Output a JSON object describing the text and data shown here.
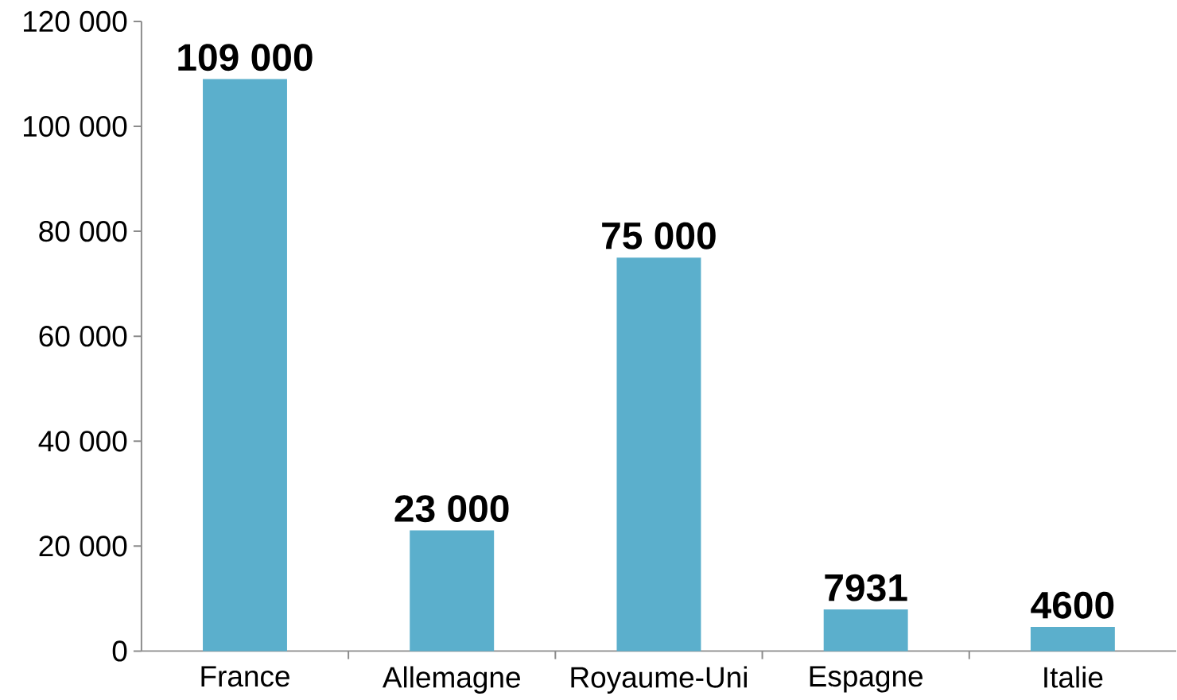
{
  "chart_data": {
    "type": "bar",
    "categories": [
      "France",
      "Allemagne",
      "Royaume-Uni",
      "Espagne",
      "Italie"
    ],
    "values": [
      109000,
      23000,
      75000,
      7931,
      4600
    ],
    "value_labels": [
      "109 000",
      "23 000",
      "75 000",
      "7931",
      "4600"
    ],
    "color": "#5bafcc",
    "ylim": [
      0,
      120000
    ],
    "yticks": [
      {
        "value": 0,
        "label": "0"
      },
      {
        "value": 20000,
        "label": "20 000"
      },
      {
        "value": 40000,
        "label": "40 000"
      },
      {
        "value": 60000,
        "label": "60 000"
      },
      {
        "value": 80000,
        "label": "80 000"
      },
      {
        "value": 100000,
        "label": "100 000"
      },
      {
        "value": 120000,
        "label": "120 000"
      }
    ],
    "grid": false
  }
}
